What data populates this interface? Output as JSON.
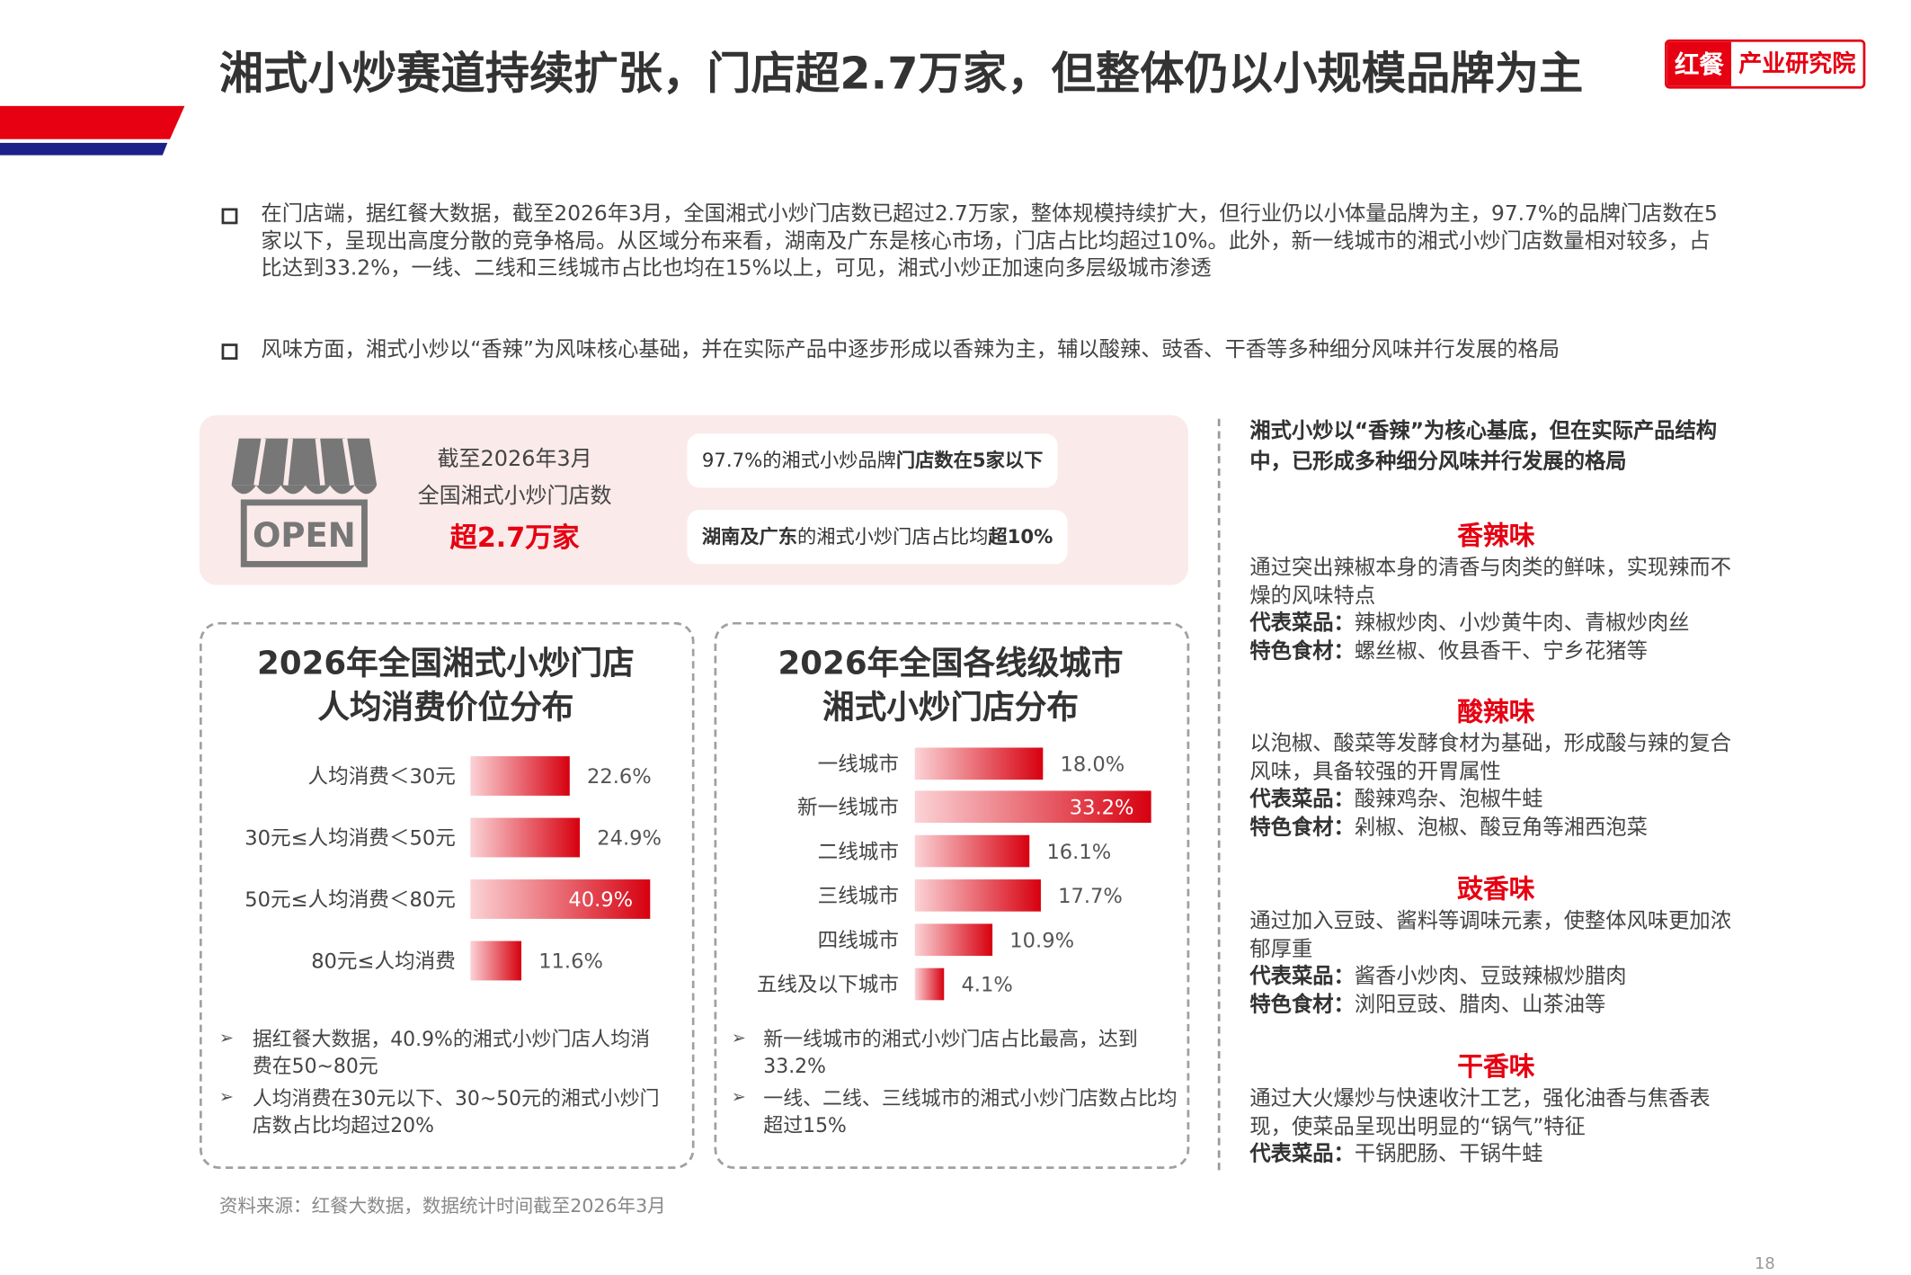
{
  "header": {
    "title": "湘式小炒赛道持续扩张，门店超2.7万家，但整体仍以小规模品牌为主",
    "logo": {
      "brand": "红餐",
      "unit": "产业研究院"
    }
  },
  "bullets": [
    "在门店端，据红餐大数据，截至2026年3月，全国湘式小炒门店数已超过2.7万家，整体规模持续扩大，但行业仍以小体量品牌为主，97.7%的品牌门店数在5家以下，呈现出高度分散的竞争格局。从区域分布来看，湖南及广东是核心市场，门店占比均超过10%。此外，新一线城市的湘式小炒门店数量相对较多，占比达到33.2%，一线、二线和三线城市占比也均在15%以上，可见，湘式小炒正加速向多层级城市渗透",
    "风味方面，湘式小炒以“香辣”为风味核心基础，并在实际产品中逐步形成以香辣为主，辅以酸辣、豉香、干香等多种细分风味并行发展的格局"
  ],
  "highlight": {
    "icon_text": "OPEN",
    "lines": [
      "截至2026年3月",
      "全国湘式小炒门店数"
    ],
    "figure": "超2.7万家",
    "facts": [
      [
        "97.7%的湘式小炒品牌",
        "门店数在5家以下"
      ],
      [
        "湖南及广东",
        "的湘式小炒门店占比均",
        "超10%"
      ]
    ]
  },
  "chart_data": [
    {
      "type": "bar",
      "orientation": "horizontal",
      "title_lines": [
        "2026年全国湘式小炒门店",
        "人均消费价位分布"
      ],
      "categories": [
        "人均消费＜30元",
        "30元≤人均消费＜50元",
        "50元≤人均消费＜80元",
        "80元≤人均消费"
      ],
      "values": [
        22.6,
        24.9,
        40.9,
        11.6
      ],
      "value_labels": [
        "22.6%",
        "24.9%",
        "40.9%",
        "11.6%"
      ],
      "color": "#d7000f",
      "notes": [
        "据红餐大数据，40.9%的湘式小炒门店人均消费在50~80元",
        "人均消费在30元以下、30~50元的湘式小炒门店数占比均超过20%"
      ]
    },
    {
      "type": "bar",
      "orientation": "horizontal",
      "title_lines": [
        "2026年全国各线级城市",
        "湘式小炒门店分布"
      ],
      "categories": [
        "一线城市",
        "新一线城市",
        "二线城市",
        "三线城市",
        "四线城市",
        "五线及以下城市"
      ],
      "values": [
        18.0,
        33.2,
        16.1,
        17.7,
        10.9,
        4.1
      ],
      "value_labels": [
        "18.0%",
        "33.2%",
        "16.1%",
        "17.7%",
        "10.9%",
        "4.1%"
      ],
      "color": "#d7000f",
      "notes": [
        "新一线城市的湘式小炒门店占比最高，达到33.2%",
        "一线、二线、三线城市的湘式小炒门店数占比均超过15%"
      ]
    }
  ],
  "flavors": {
    "intro": "湘式小炒以“香辣”为核心基底，但在实际产品结构中，已形成多种细分风味并行发展的格局",
    "items": [
      {
        "name": "香辣味",
        "desc": "通过突出辣椒本身的清香与肉类的鲜味，实现辣而不燥的风味特点",
        "details": [
          [
            "代表菜品：",
            "辣椒炒肉、小炒黄牛肉、青椒炒肉丝"
          ],
          [
            "特色食材：",
            "螺丝椒、攸县香干、宁乡花猪等"
          ]
        ]
      },
      {
        "name": "酸辣味",
        "desc": "以泡椒、酸菜等发酵食材为基础，形成酸与辣的复合风味，具备较强的开胃属性",
        "details": [
          [
            "代表菜品：",
            "酸辣鸡杂、泡椒牛蛙"
          ],
          [
            "特色食材：",
            "剁椒、泡椒、酸豆角等湘西泡菜"
          ]
        ]
      },
      {
        "name": "豉香味",
        "desc": "通过加入豆豉、酱料等调味元素，使整体风味更加浓郁厚重",
        "details": [
          [
            "代表菜品：",
            "酱香小炒肉、豆豉辣椒炒腊肉"
          ],
          [
            "特色食材：",
            "浏阳豆豉、腊肉、山茶油等"
          ]
        ]
      },
      {
        "name": "干香味",
        "desc": "通过大火爆炒与快速收汁工艺，强化油香与焦香表现，使菜品呈现出明显的“锅气”特征",
        "details": [
          [
            "代表菜品：",
            "干锅肥肠、干锅牛蛙"
          ]
        ]
      }
    ]
  },
  "source": "资料来源：红餐大数据，数据统计时间截至2026年3月",
  "page_number": "18"
}
